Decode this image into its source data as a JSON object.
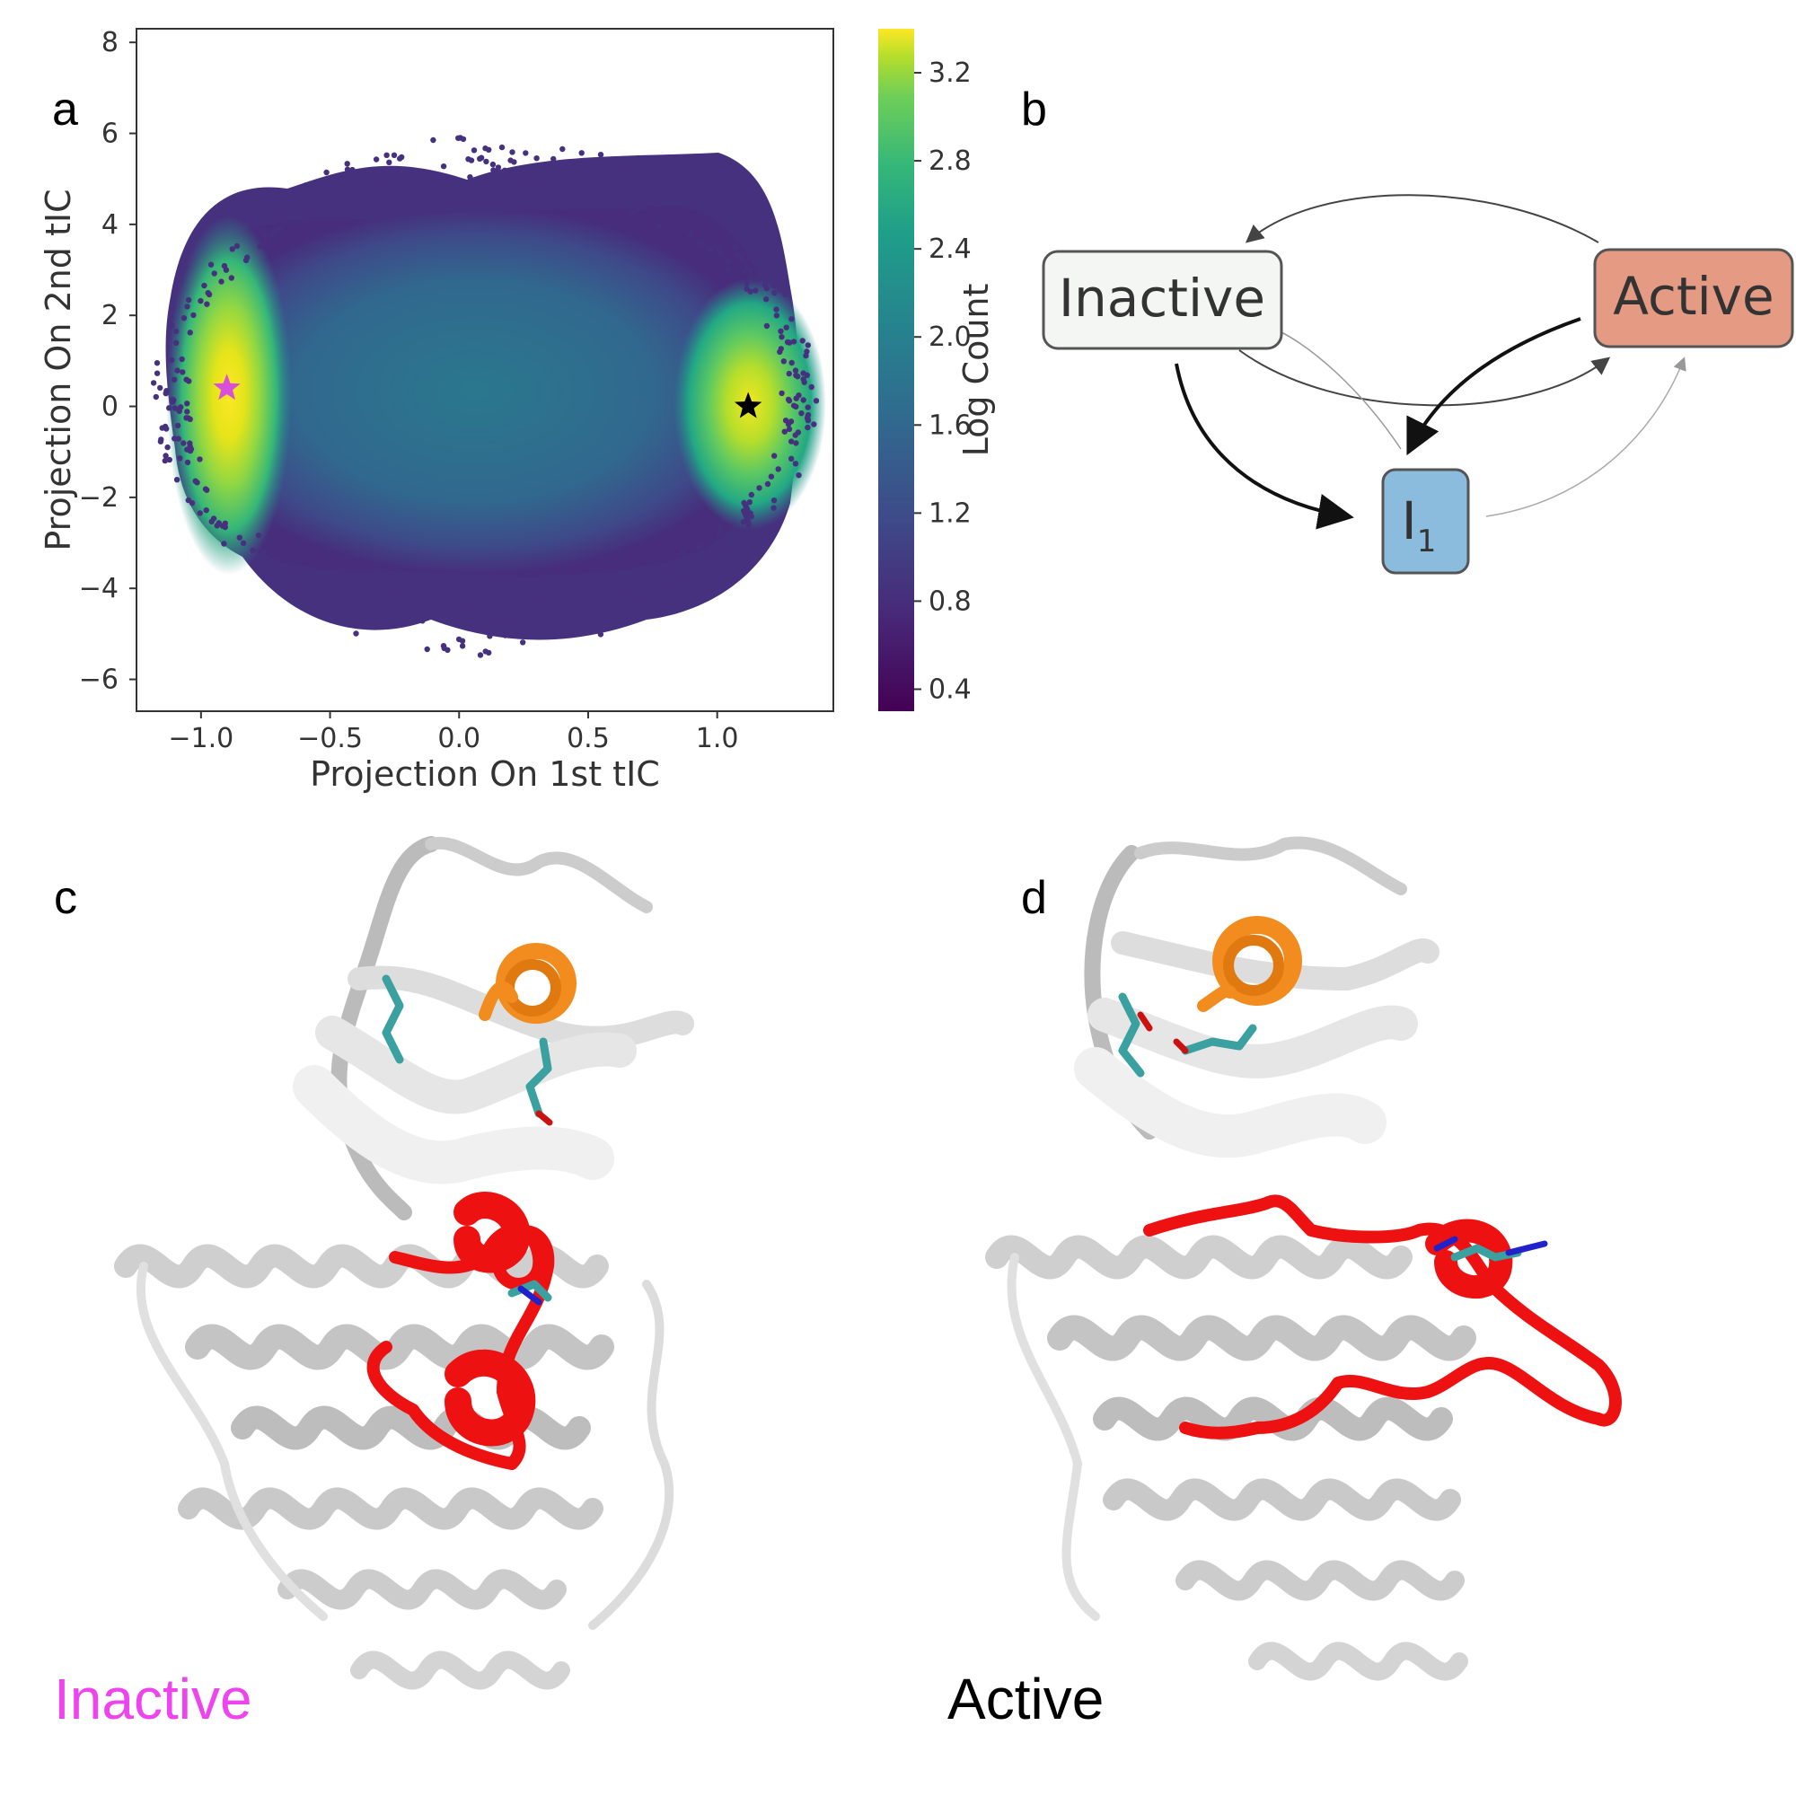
{
  "panels": {
    "a": "a",
    "b": "b",
    "c": "c",
    "d": "d"
  },
  "chart_data": {
    "type": "heatmap",
    "xlabel": "Projection On 1st tIC",
    "ylabel": "Projection On 2nd tIC",
    "xlim": [
      -1.25,
      1.45
    ],
    "ylim": [
      -6.7,
      8.3
    ],
    "xticks": [
      -1.0,
      -0.5,
      0.0,
      0.5,
      1.0
    ],
    "xtick_labels": [
      "−1.0",
      "−0.5",
      "0.0",
      "0.5",
      "1.0"
    ],
    "yticks": [
      -6,
      -4,
      -2,
      0,
      2,
      4,
      6,
      8
    ],
    "ytick_labels": [
      "−6",
      "−4",
      "−2",
      "0",
      "2",
      "4",
      "6",
      "8"
    ],
    "colorbar": {
      "label": "Log Count",
      "range": [
        0.3,
        3.4
      ],
      "ticks": [
        0.4,
        0.8,
        1.2,
        1.6,
        2.0,
        2.4,
        2.8,
        3.2
      ],
      "tick_labels": [
        "0.4",
        "0.8",
        "1.2",
        "1.6",
        "2.0",
        "2.4",
        "2.8",
        "3.2"
      ],
      "colormap": "viridis"
    },
    "markers": [
      {
        "label": "inactive",
        "x": -0.9,
        "y": 0.4,
        "symbol": "star",
        "color": "#d94fd9"
      },
      {
        "label": "active",
        "x": 1.12,
        "y": 0.0,
        "symbol": "star",
        "color": "#000000"
      }
    ],
    "density_peaks": [
      {
        "x": -0.9,
        "y": 0.4,
        "value": 3.4
      },
      {
        "x": 1.12,
        "y": 0.0,
        "value": 3.2
      }
    ],
    "grid": false
  },
  "network": {
    "nodes": [
      {
        "id": "inactive",
        "label": "Inactive",
        "fill": "#f4f6f4"
      },
      {
        "id": "active",
        "label": "Active",
        "fill": "#e59a84"
      },
      {
        "id": "i1",
        "label": "I",
        "sub": "1",
        "fill": "#8bbcde"
      }
    ],
    "edges": [
      {
        "from": "active",
        "to": "inactive",
        "weight": "medium"
      },
      {
        "from": "inactive",
        "to": "active",
        "weight": "medium"
      },
      {
        "from": "inactive",
        "to": "i1",
        "weight": "heavy"
      },
      {
        "from": "active",
        "to": "i1",
        "weight": "heavy"
      },
      {
        "from": "i1",
        "to": "inactive",
        "weight": "light"
      },
      {
        "from": "i1",
        "to": "active",
        "weight": "light"
      }
    ]
  },
  "structures": {
    "c_label": "Inactive",
    "d_label": "Active",
    "c_color": "#ee44ee",
    "d_color": "#000000"
  }
}
